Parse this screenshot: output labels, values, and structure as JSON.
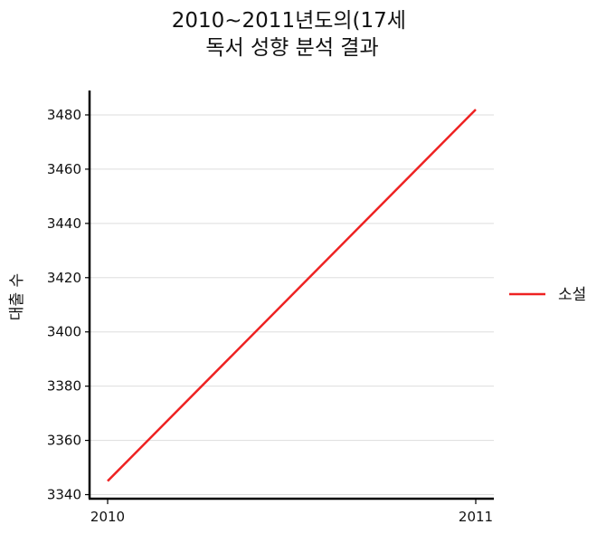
{
  "chart_data": {
    "type": "line",
    "title": "2010~2011년도의(17세\n독서 성향 분석 결과",
    "xlabel": "",
    "ylabel": "대출 수",
    "categories": [
      "2010",
      "2011"
    ],
    "series": [
      {
        "name": "소설",
        "color": "#ee2222",
        "values": [
          3345,
          3482
        ]
      }
    ],
    "yticks": [
      3340,
      3360,
      3380,
      3400,
      3420,
      3440,
      3460,
      3480
    ],
    "ylim": [
      3338.5,
      3489
    ],
    "grid": "horizontal",
    "legend": "right"
  }
}
